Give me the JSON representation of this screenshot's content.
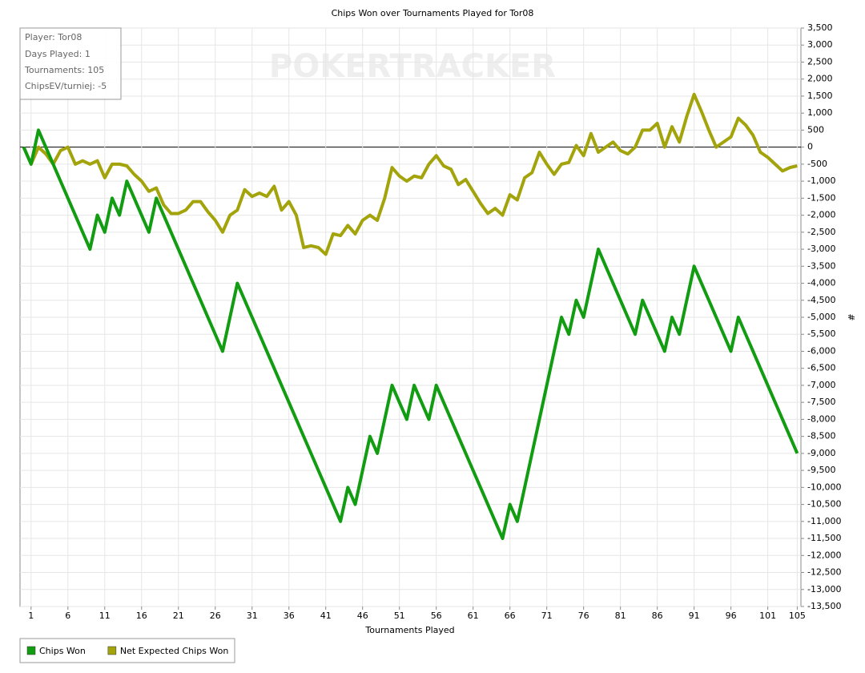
{
  "chart_data": {
    "type": "line",
    "title": "Chips Won over Tournaments Played for Tor08",
    "watermark": "POKERTRACKER",
    "info_box": [
      "Player: Tor08",
      "Days Played: 1",
      "Tournaments: 105",
      "ChipsEV/turniej: -5"
    ],
    "xlabel": "Tournaments Played",
    "ylabel": "#",
    "x": [
      0,
      1,
      2,
      3,
      4,
      5,
      6,
      7,
      8,
      9,
      10,
      11,
      12,
      13,
      14,
      15,
      16,
      17,
      18,
      19,
      20,
      21,
      22,
      23,
      24,
      25,
      26,
      27,
      28,
      29,
      30,
      31,
      32,
      33,
      34,
      35,
      36,
      37,
      38,
      39,
      40,
      41,
      42,
      43,
      44,
      45,
      46,
      47,
      48,
      49,
      50,
      51,
      52,
      53,
      54,
      55,
      56,
      57,
      58,
      59,
      60,
      61,
      62,
      63,
      64,
      65,
      66,
      67,
      68,
      69,
      70,
      71,
      72,
      73,
      74,
      75,
      76,
      77,
      78,
      79,
      80,
      81,
      82,
      83,
      84,
      85,
      86,
      87,
      88,
      89,
      90,
      91,
      92,
      93,
      94,
      95,
      96,
      97,
      98,
      99,
      100,
      101,
      102,
      103,
      104,
      105
    ],
    "series": [
      {
        "name": "Chips Won",
        "color": "#119c11",
        "values": [
          0,
          -500,
          500,
          0,
          -500,
          -1000,
          -1500,
          -2000,
          -2500,
          -3000,
          -2000,
          -2500,
          -1500,
          -2000,
          -1000,
          -1500,
          -2000,
          -2500,
          -1500,
          -2000,
          -2500,
          -3000,
          -3500,
          -4000,
          -4500,
          -5000,
          -5500,
          -6000,
          -5000,
          -4000,
          -4500,
          -5000,
          -5500,
          -6000,
          -6500,
          -7000,
          -7500,
          -8000,
          -8500,
          -9000,
          -9500,
          -10000,
          -10500,
          -11000,
          -10000,
          -10500,
          -9500,
          -8500,
          -9000,
          -8000,
          -7000,
          -7500,
          -8000,
          -7000,
          -7500,
          -8000,
          -7000,
          -7500,
          -8000,
          -8500,
          -9000,
          -9500,
          -10000,
          -10500,
          -11000,
          -11500,
          -10500,
          -11000,
          -10000,
          -9000,
          -8000,
          -7000,
          -6000,
          -5000,
          -5500,
          -4500,
          -5000,
          -4000,
          -3000,
          -3500,
          -4000,
          -4500,
          -5000,
          -5500,
          -4500,
          -5000,
          -5500,
          -6000,
          -5000,
          -5500,
          -4500,
          -3500,
          -4000,
          -4500,
          -5000,
          -5500,
          -6000,
          -5000,
          -5500,
          -6000,
          -6500,
          -7000,
          -7500,
          -8000,
          -8500,
          -9000
        ]
      },
      {
        "name": "Net Expected Chips Won",
        "color": "#a3a30c",
        "values": [
          0,
          -500,
          0,
          -200,
          -500,
          -100,
          0,
          -500,
          -400,
          -500,
          -400,
          -900,
          -500,
          -500,
          -550,
          -800,
          -1000,
          -1300,
          -1200,
          -1700,
          -1950,
          -1950,
          -1850,
          -1600,
          -1600,
          -1900,
          -2150,
          -2500,
          -2000,
          -1850,
          -1250,
          -1450,
          -1350,
          -1450,
          -1150,
          -1850,
          -1600,
          -2000,
          -2950,
          -2900,
          -2950,
          -3150,
          -2550,
          -2600,
          -2300,
          -2550,
          -2150,
          -2000,
          -2150,
          -1500,
          -600,
          -850,
          -1000,
          -850,
          -900,
          -500,
          -250,
          -550,
          -650,
          -1100,
          -950,
          -1300,
          -1650,
          -1950,
          -1800,
          -2000,
          -1400,
          -1550,
          -900,
          -750,
          -150,
          -500,
          -800,
          -500,
          -450,
          50,
          -250,
          400,
          -150,
          0,
          150,
          -100,
          -200,
          0,
          500,
          500,
          700,
          0,
          600,
          150,
          900,
          1550,
          1050,
          500,
          0,
          150,
          300,
          850,
          650,
          350,
          -150,
          -300,
          -500,
          -700,
          -600,
          -550
        ]
      }
    ],
    "xlim": [
      -0.5,
      105.5
    ],
    "xticks": [
      1,
      6,
      11,
      16,
      21,
      26,
      31,
      36,
      41,
      46,
      51,
      56,
      61,
      66,
      71,
      76,
      81,
      86,
      91,
      96,
      101,
      105
    ],
    "ylim": [
      -13500,
      3500
    ],
    "yticks": [
      {
        "value": 3500,
        "label": "3,500"
      },
      {
        "value": 3000,
        "label": "3,000"
      },
      {
        "value": 2500,
        "label": "2,500"
      },
      {
        "value": 2000,
        "label": "2,000"
      },
      {
        "value": 1500,
        "label": "1,500"
      },
      {
        "value": 1000,
        "label": "1,000"
      },
      500,
      0,
      -500,
      {
        "value": -1000,
        "label": "-1,000"
      },
      {
        "value": -1500,
        "label": "-1,500"
      },
      {
        "value": -2000,
        "label": "-2,000"
      },
      {
        "value": -2500,
        "label": "-2,500"
      },
      {
        "value": -3000,
        "label": "-3,000"
      },
      {
        "value": -3500,
        "label": "-3,500"
      },
      {
        "value": -4000,
        "label": "-4,000"
      },
      {
        "value": -4500,
        "label": "-4,500"
      },
      {
        "value": -5000,
        "label": "-5,000"
      },
      {
        "value": -5500,
        "label": "-5,500"
      },
      {
        "value": -6000,
        "label": "-6,000"
      },
      {
        "value": -6500,
        "label": "-6,500"
      },
      {
        "value": -7000,
        "label": "-7,000"
      },
      {
        "value": -7500,
        "label": "-7,500"
      },
      {
        "value": -8000,
        "label": "-8,000"
      },
      {
        "value": -8500,
        "label": "-8,500"
      },
      {
        "value": -9000,
        "label": "-9,000"
      },
      {
        "value": -9500,
        "label": "-9,500"
      },
      {
        "value": -10000,
        "label": "-10,000"
      },
      {
        "value": -10500,
        "label": "-10,500"
      },
      {
        "value": -11000,
        "label": "-11,000"
      },
      {
        "value": -11500,
        "label": "-11,500"
      },
      {
        "value": -12000,
        "label": "-12,000"
      },
      {
        "value": -12500,
        "label": "-12,500"
      },
      {
        "value": -13000,
        "label": "-13,000"
      },
      {
        "value": -13500,
        "label": "-13,500"
      }
    ],
    "grid": true,
    "legend": "bottom-left"
  }
}
